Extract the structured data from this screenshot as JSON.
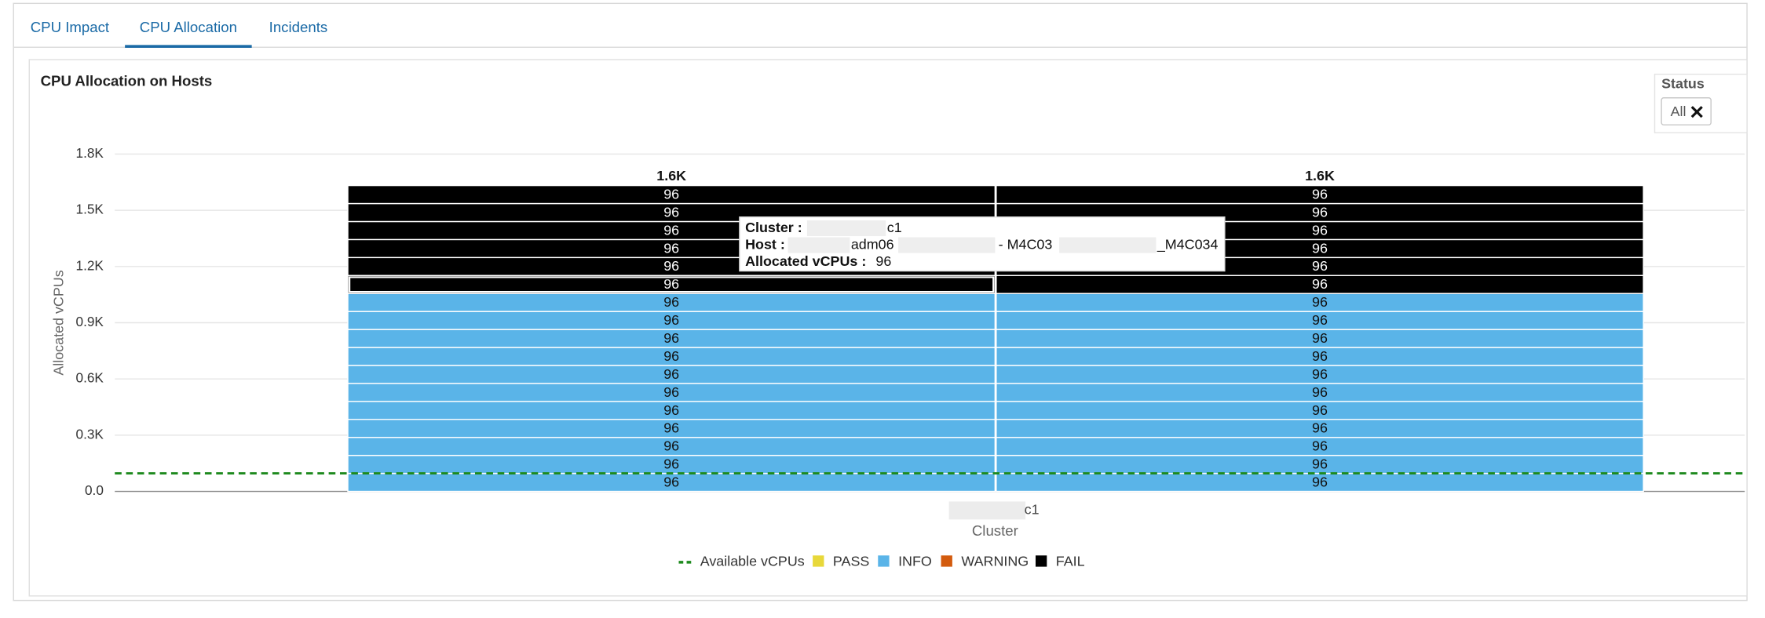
{
  "tabs": [
    {
      "label": "CPU Impact"
    },
    {
      "label": "CPU Allocation",
      "active": true
    },
    {
      "label": "Incidents"
    }
  ],
  "panel": {
    "title": "CPU Allocation on Hosts"
  },
  "filter": {
    "label": "Status",
    "value": "All"
  },
  "chart_data": {
    "type": "stacked-bar",
    "ylabel": "Allocated vCPUs",
    "xlabel": "Cluster",
    "categories": [
      "c1"
    ],
    "ylim": [
      0,
      1800
    ],
    "yticks": [
      {
        "value": 0,
        "label": "0.0"
      },
      {
        "value": 300,
        "label": "0.3K"
      },
      {
        "value": 600,
        "label": "0.6K"
      },
      {
        "value": 900,
        "label": "0.9K"
      },
      {
        "value": 1200,
        "label": "1.2K"
      },
      {
        "value": 1500,
        "label": "1.5K"
      },
      {
        "value": 1800,
        "label": "1.8K"
      }
    ],
    "grid": true,
    "series": [
      {
        "name": "Available vCPUs",
        "type": "line",
        "color": "#1e8a1e",
        "values": [
          96
        ]
      },
      {
        "name": "PASS",
        "color": "#e8d83a"
      },
      {
        "name": "INFO",
        "color": "#5ab4e8"
      },
      {
        "name": "WARNING",
        "color": "#d35b0e"
      },
      {
        "name": "FAIL",
        "color": "#000000"
      }
    ],
    "bars": [
      {
        "values": [
          96,
          96,
          96,
          96,
          96,
          96,
          96,
          96,
          96,
          96,
          96,
          96,
          96,
          96,
          96,
          96,
          96
        ],
        "status": [
          "INFO",
          "INFO",
          "INFO",
          "INFO",
          "INFO",
          "INFO",
          "INFO",
          "INFO",
          "INFO",
          "INFO",
          "INFO",
          "FAIL",
          "FAIL",
          "FAIL",
          "FAIL",
          "FAIL",
          "FAIL"
        ],
        "total": {
          "value": 1632,
          "label": "1.6K"
        }
      },
      {
        "values": [
          96,
          96,
          96,
          96,
          96,
          96,
          96,
          96,
          96,
          96,
          96,
          96,
          96,
          96,
          96,
          96,
          96
        ],
        "status": [
          "INFO",
          "INFO",
          "INFO",
          "INFO",
          "INFO",
          "INFO",
          "INFO",
          "INFO",
          "INFO",
          "INFO",
          "INFO",
          "FAIL",
          "FAIL",
          "FAIL",
          "FAIL",
          "FAIL",
          "FAIL"
        ],
        "total": {
          "value": 1632,
          "label": "1.6K"
        }
      }
    ],
    "tooltip": {
      "bar": 0,
      "segment": 11,
      "rows": [
        {
          "label": "Cluster :",
          "value": "c1"
        },
        {
          "label": "Host :",
          "value": [
            "adm06",
            "- M4C03",
            "_M4C034"
          ]
        },
        {
          "label": "Allocated vCPUs :",
          "value": 96
        }
      ]
    }
  }
}
